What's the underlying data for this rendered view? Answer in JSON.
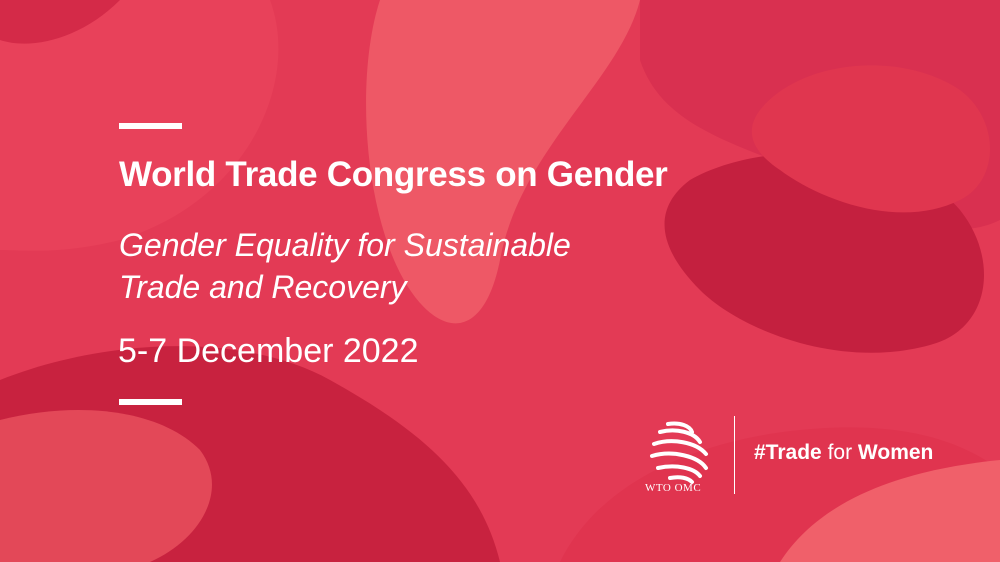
{
  "event": {
    "title": "World Trade Congress on Gender",
    "subtitle_line1": "Gender Equality for Sustainable",
    "subtitle_line2": "Trade and Recovery",
    "date": "5-7 December 2022"
  },
  "branding": {
    "logo_text": "WTO OMC",
    "hashtag_part1": "#Trade",
    "hashtag_part2": "for",
    "hashtag_part3": "Women",
    "logo_icon": "wto-globe-icon"
  },
  "colors": {
    "background": "#e33a55",
    "dark_blob": "#c4203f",
    "light_blob": "#f0606a",
    "text": "#ffffff"
  }
}
